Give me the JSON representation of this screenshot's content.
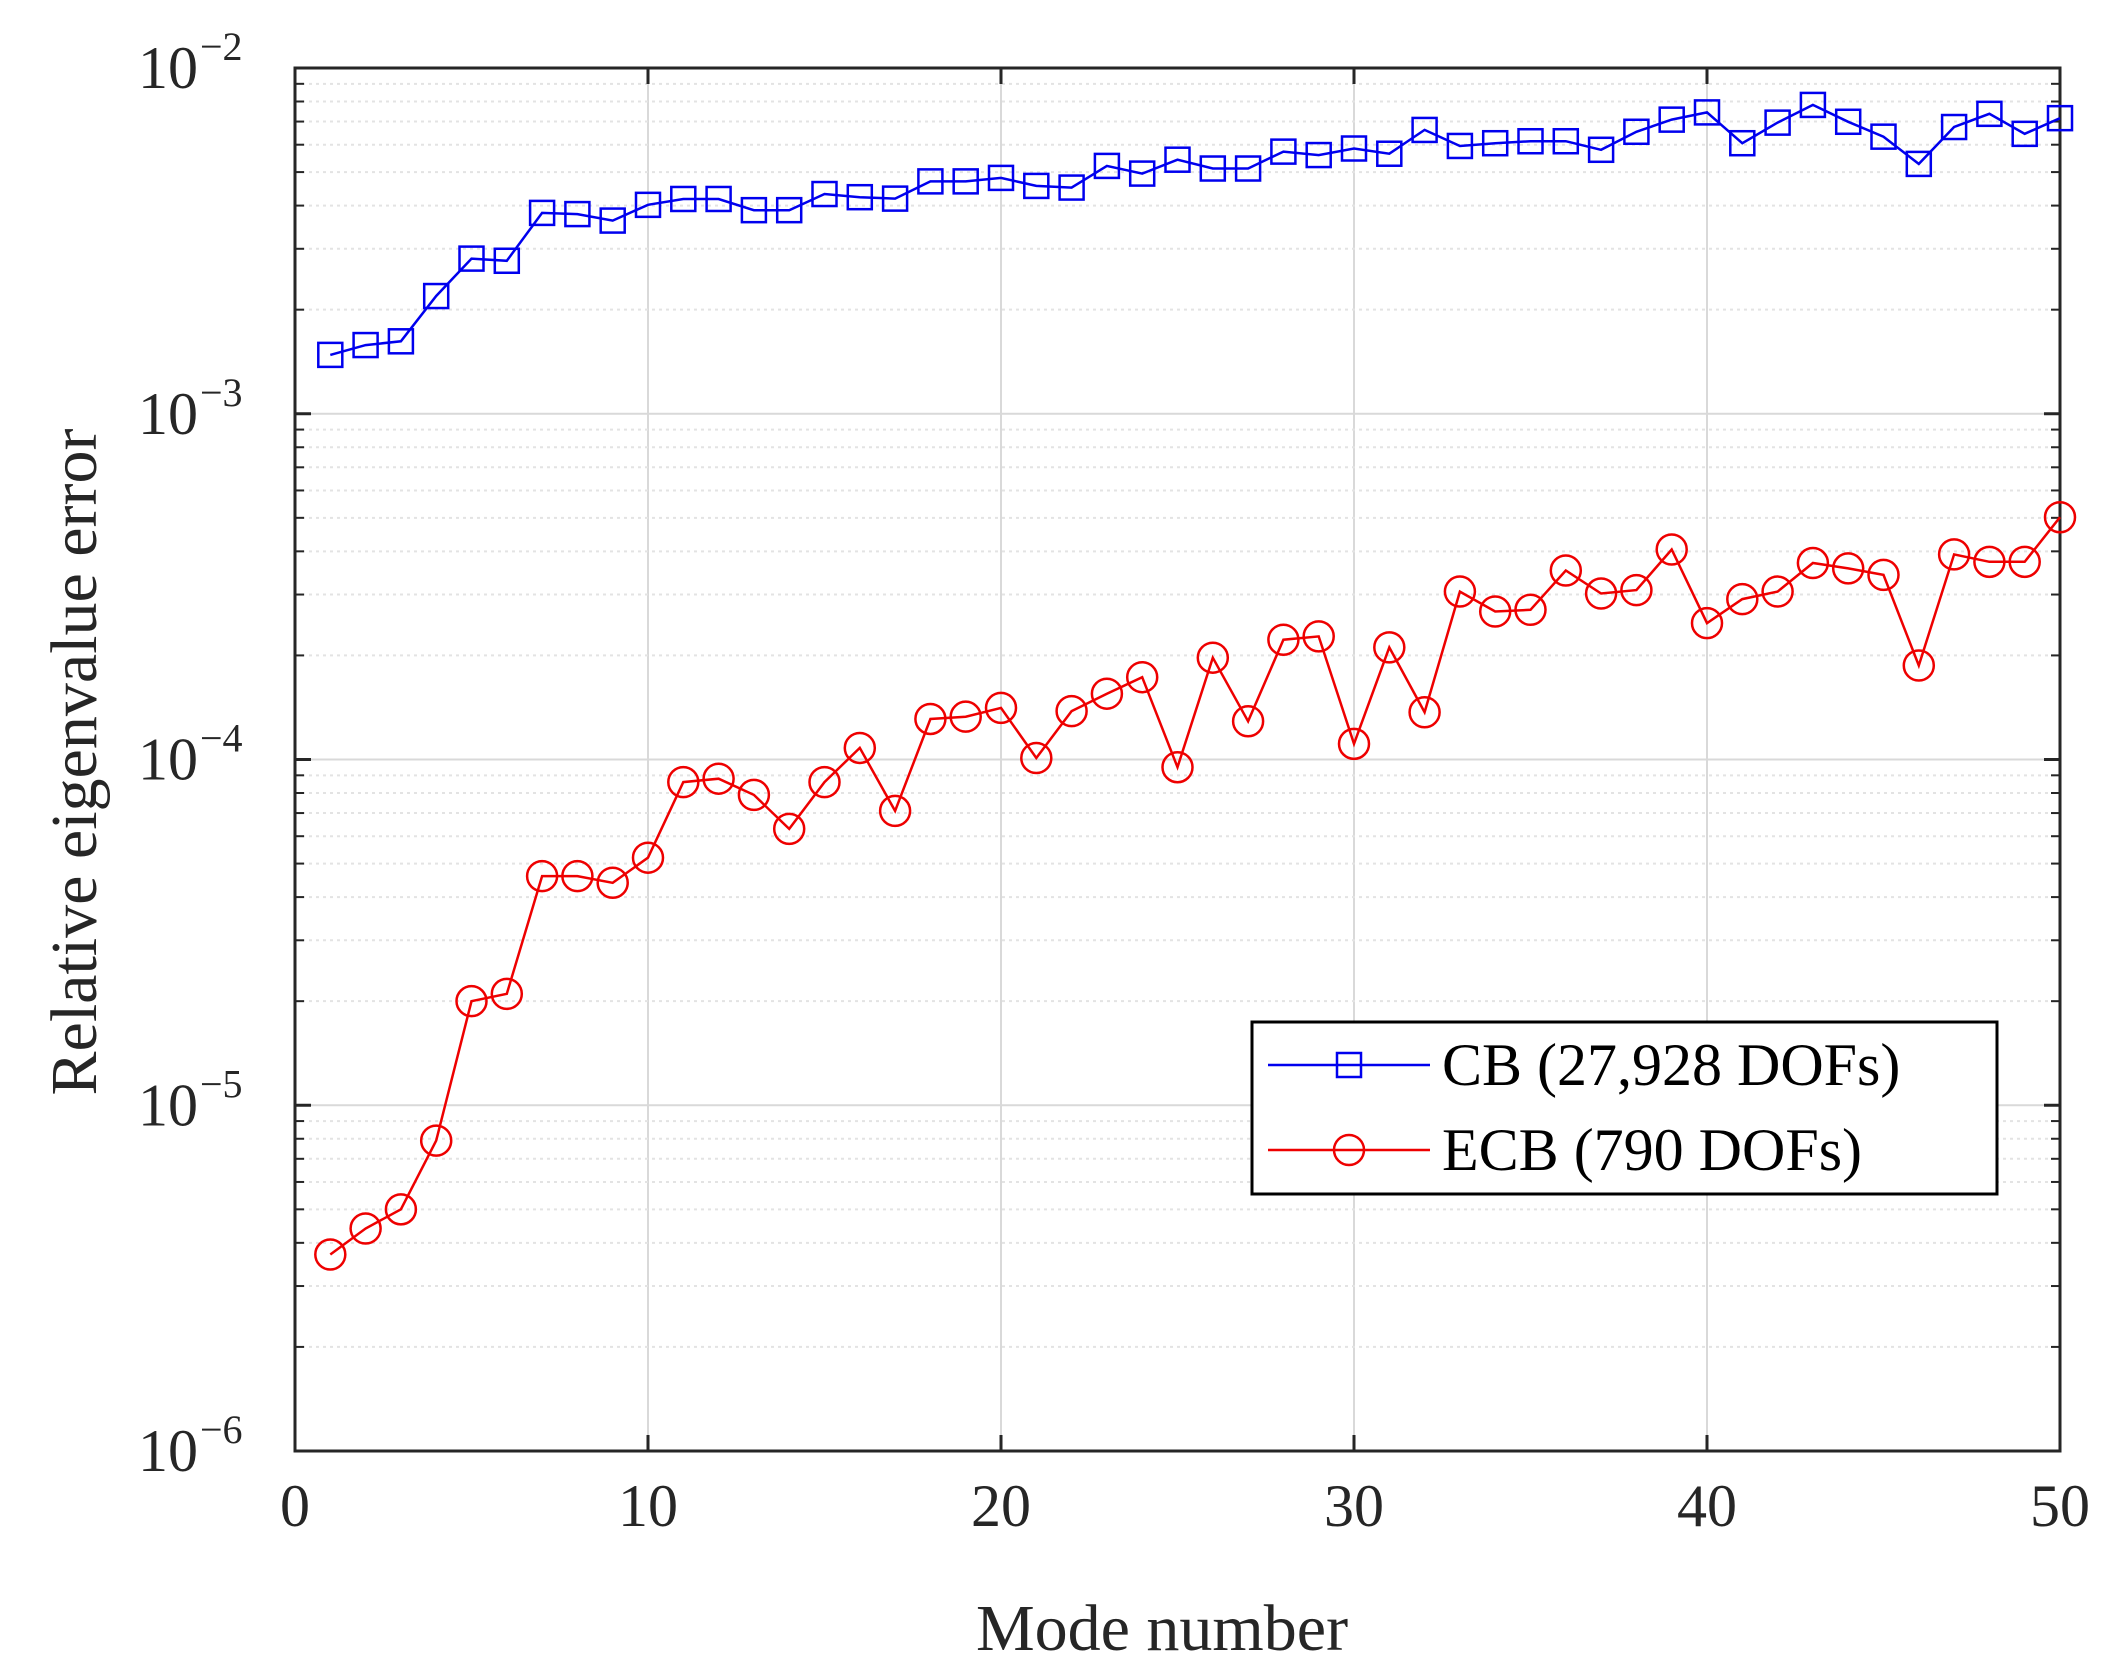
{
  "chart_data": {
    "type": "line",
    "title": "",
    "xlabel": "Mode number",
    "ylabel": "Relative eigenvalue error",
    "xlim": [
      0,
      50
    ],
    "ylim": [
      1e-06,
      0.01
    ],
    "yscale": "log",
    "grid": true,
    "legend_position": "lower-right",
    "x_ticks": [
      "0",
      "10",
      "20",
      "30",
      "40",
      "50"
    ],
    "y_ticks": [
      {
        "base": "10",
        "exp": "−6"
      },
      {
        "base": "10",
        "exp": "−5"
      },
      {
        "base": "10",
        "exp": "−4"
      },
      {
        "base": "10",
        "exp": "−3"
      },
      {
        "base": "10",
        "exp": "−2"
      }
    ],
    "x": [
      1,
      2,
      3,
      4,
      5,
      6,
      7,
      8,
      9,
      10,
      11,
      12,
      13,
      14,
      15,
      16,
      17,
      18,
      19,
      20,
      21,
      22,
      23,
      24,
      25,
      26,
      27,
      28,
      29,
      30,
      31,
      32,
      33,
      34,
      35,
      36,
      37,
      38,
      39,
      40,
      41,
      42,
      43,
      44,
      45,
      46,
      47,
      48,
      49,
      50
    ],
    "series": [
      {
        "name": "CB (27,928 DOFs)",
        "color": "#0000ee",
        "marker": "square",
        "values": [
          0.00148,
          0.00158,
          0.00162,
          0.00219,
          0.00281,
          0.00277,
          0.00381,
          0.00378,
          0.00362,
          0.00402,
          0.00418,
          0.00418,
          0.00388,
          0.00388,
          0.00432,
          0.00423,
          0.00419,
          0.0047,
          0.0047,
          0.00481,
          0.00456,
          0.00451,
          0.00521,
          0.00495,
          0.00543,
          0.00512,
          0.00512,
          0.00573,
          0.0056,
          0.00585,
          0.00565,
          0.00662,
          0.00595,
          0.00606,
          0.00614,
          0.00614,
          0.0058,
          0.00654,
          0.00709,
          0.00744,
          0.00606,
          0.00695,
          0.00782,
          0.00699,
          0.00633,
          0.00528,
          0.00675,
          0.00737,
          0.00645,
          0.00716
        ]
      },
      {
        "name": "ECB (790 DOFs)",
        "color": "#ee0000",
        "marker": "circle",
        "values": [
          3.7e-06,
          4.4e-06,
          5e-06,
          7.9e-06,
          2e-05,
          2.1e-05,
          4.6e-05,
          4.6e-05,
          4.4e-05,
          5.2e-05,
          8.6e-05,
          8.8e-05,
          7.9e-05,
          6.3e-05,
          8.6e-05,
          0.000108,
          7.1e-05,
          0.000131,
          0.000133,
          0.000141,
          0.000101,
          0.000138,
          0.000155,
          0.000173,
          9.5e-05,
          0.000197,
          0.000129,
          0.000222,
          0.000227,
          0.000111,
          0.000211,
          0.000137,
          0.000306,
          0.000268,
          0.000271,
          0.000352,
          0.000302,
          0.000309,
          0.000405,
          0.000248,
          0.000291,
          0.000306,
          0.00037,
          0.000357,
          0.000342,
          0.000187,
          0.000392,
          0.000373,
          0.000373,
          0.000502
        ]
      }
    ]
  }
}
